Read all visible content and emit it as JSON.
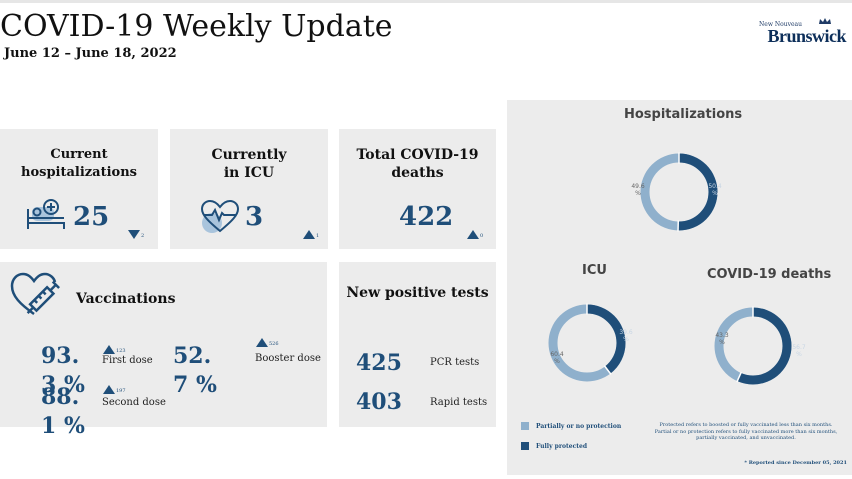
{
  "header": {
    "title": "COVID-19 Weekly Update",
    "date_range": "June 12 – June 18, 2022",
    "logo_small": "New Nouveau",
    "logo_big": "Brunswick"
  },
  "cards": {
    "hospitalizations": {
      "title": "Current hospitalizations",
      "value": "25",
      "delta": "2",
      "delta_dir": "down"
    },
    "icu": {
      "title_line1": "Currently",
      "title_line2": "in ICU",
      "value": "3",
      "delta": "1",
      "delta_dir": "up"
    },
    "deaths": {
      "title_line1": "Total COVID-19",
      "title_line2": "deaths",
      "value": "422",
      "delta": "0",
      "delta_dir": "up"
    },
    "vaccinations": {
      "title": "Vaccinations",
      "first_dose": {
        "value": "93.3 %",
        "label": "First dose",
        "delta": "123"
      },
      "second_dose": {
        "value": "88.1 %",
        "label": "Second dose",
        "delta": "197"
      },
      "booster_dose": {
        "value": "52.7 %",
        "label": "Booster dose",
        "delta": "526"
      }
    },
    "positive_tests": {
      "title": "New positive tests",
      "pcr": {
        "value": "425",
        "label": "PCR tests"
      },
      "rapid": {
        "value": "403",
        "label": "Rapid tests"
      }
    }
  },
  "right_panel": {
    "colors": {
      "partial": "#8fb0cc",
      "full": "#1f4e79"
    },
    "charts": [
      {
        "title": "Hospitalizations",
        "partial_pct": 49.6,
        "full_pct": 50.4,
        "partial_label": "49.6 %",
        "full_label": "50.4 %"
      },
      {
        "title": "ICU",
        "partial_pct": 60.4,
        "full_pct": 39.6,
        "partial_label": "60.4 %",
        "full_label": "39.6 %"
      },
      {
        "title": "COVID-19 deaths",
        "partial_pct": 43.3,
        "full_pct": 56.7,
        "partial_label": "43.3 %",
        "full_label": "56.7 %"
      }
    ],
    "legend": {
      "partial": "Partially or no protection",
      "full": "Fully protected"
    },
    "note_line1": "Protected refers to boosted or fully vaccinated less than six months.",
    "note_line2": "Partial or no protection refers to fully vaccinated more than six months,",
    "note_line3": "partially vaccinated, and unvaccinated.",
    "footnote": "* Reported since December 05, 2021"
  }
}
